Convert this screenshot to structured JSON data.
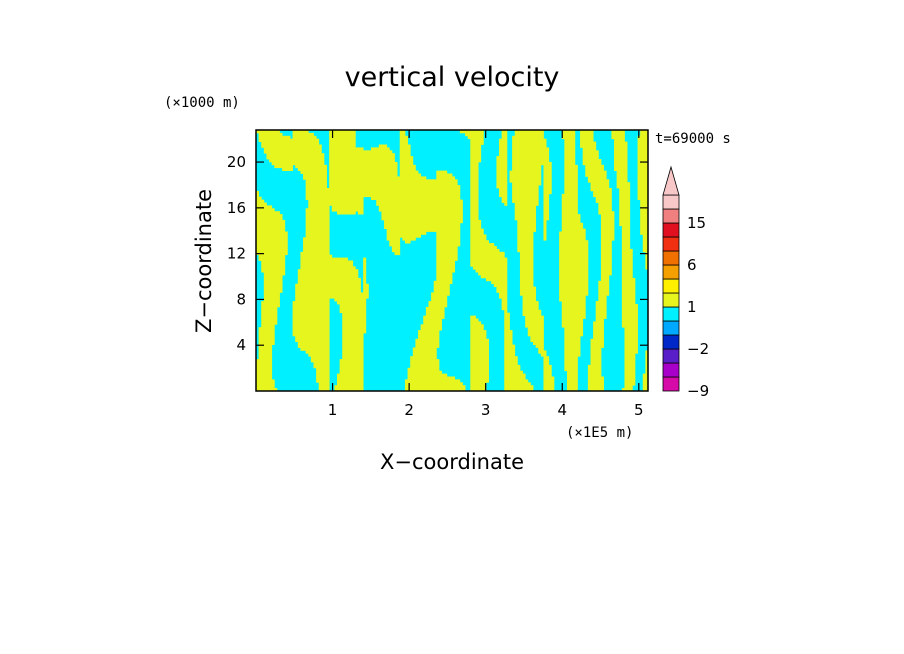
{
  "chart_data": {
    "type": "heatmap",
    "title": "vertical velocity",
    "xlabel": "X−coordinate",
    "ylabel": "Z−coordinate",
    "x_unit": "(×1E5 m)",
    "y_unit": "(×1000 m)",
    "time_label": "t=69000 s",
    "xlim": [
      0,
      5.12
    ],
    "ylim": [
      0,
      22.8
    ],
    "x_ticks": [
      1,
      2,
      3,
      4,
      5
    ],
    "y_ticks": [
      4,
      8,
      12,
      16,
      20
    ],
    "x_tick_labels": [
      "1",
      "2",
      "3",
      "4",
      "5"
    ],
    "y_tick_labels": [
      "4",
      "8",
      "12",
      "16",
      "20"
    ],
    "fill_colors": {
      "positive": "#e6f51e",
      "negative": "#00f0ff"
    },
    "colorbar": {
      "label_texts": [
        "15",
        "6",
        "1",
        "−2",
        "−9"
      ],
      "label_values": [
        15,
        6,
        1,
        -2,
        -9
      ],
      "levels": [
        -9,
        -6,
        -4,
        -2,
        -1,
        0,
        1,
        2,
        4,
        6,
        9,
        12,
        15,
        20
      ],
      "colors": [
        "#d50aa8",
        "#a800c8",
        "#5a1ec8",
        "#0028c8",
        "#00a8ff",
        "#00f0ff",
        "#e6f51e",
        "#fff000",
        "#f5a000",
        "#f07000",
        "#f03010",
        "#e01020",
        "#f08080",
        "#f8c8c8"
      ],
      "extend": "max"
    }
  }
}
